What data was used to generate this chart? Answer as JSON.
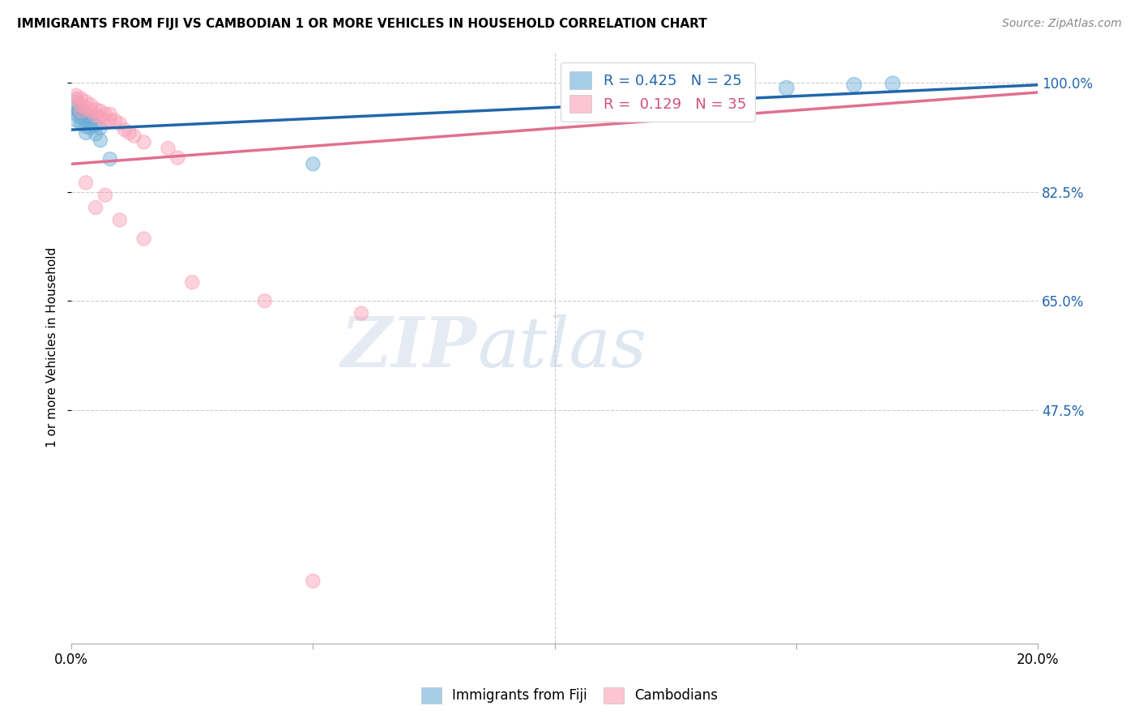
{
  "title": "IMMIGRANTS FROM FIJI VS CAMBODIAN 1 OR MORE VEHICLES IN HOUSEHOLD CORRELATION CHART",
  "source": "Source: ZipAtlas.com",
  "ylabel": "1 or more Vehicles in Household",
  "ytick_labels": [
    "100.0%",
    "82.5%",
    "65.0%",
    "47.5%"
  ],
  "ytick_values": [
    1.0,
    0.825,
    0.65,
    0.475
  ],
  "xlim": [
    0.0,
    0.2
  ],
  "ylim": [
    0.1,
    1.05
  ],
  "legend_blue_r": "0.425",
  "legend_blue_n": "25",
  "legend_pink_r": "0.129",
  "legend_pink_n": "35",
  "legend_label_blue": "Immigrants from Fiji",
  "legend_label_pink": "Cambodians",
  "watermark_zip": "ZIP",
  "watermark_atlas": "atlas",
  "blue_color": "#6baed6",
  "pink_color": "#fa9fb5",
  "blue_line_color": "#2166ac",
  "pink_line_color": "#e07090",
  "fiji_x": [
    0.0005,
    0.001,
    0.001,
    0.001,
    0.0015,
    0.002,
    0.002,
    0.002,
    0.003,
    0.003,
    0.003,
    0.003,
    0.004,
    0.004,
    0.004,
    0.005,
    0.005,
    0.006,
    0.006,
    0.008,
    0.05,
    0.135,
    0.148,
    0.162,
    0.17
  ],
  "fiji_y": [
    0.965,
    0.96,
    0.95,
    0.94,
    0.955,
    0.955,
    0.945,
    0.935,
    0.95,
    0.94,
    0.93,
    0.92,
    0.948,
    0.938,
    0.928,
    0.932,
    0.918,
    0.928,
    0.908,
    0.878,
    0.87,
    0.988,
    0.992,
    0.997,
    0.999
  ],
  "fiji_sizes": [
    120,
    60,
    60,
    60,
    60,
    60,
    60,
    60,
    60,
    60,
    60,
    60,
    60,
    60,
    60,
    60,
    60,
    60,
    60,
    60,
    60,
    90,
    70,
    70,
    70
  ],
  "cambodian_x": [
    0.001,
    0.001,
    0.002,
    0.002,
    0.002,
    0.003,
    0.003,
    0.004,
    0.004,
    0.005,
    0.005,
    0.006,
    0.006,
    0.007,
    0.007,
    0.008,
    0.008,
    0.009,
    0.01,
    0.011,
    0.012,
    0.013,
    0.015,
    0.02,
    0.022,
    0.003,
    0.005,
    0.007,
    0.01,
    0.015,
    0.04,
    0.06,
    0.025,
    0.13,
    0.05
  ],
  "cambodian_y": [
    0.98,
    0.975,
    0.975,
    0.965,
    0.955,
    0.97,
    0.96,
    0.965,
    0.955,
    0.958,
    0.948,
    0.955,
    0.945,
    0.95,
    0.94,
    0.95,
    0.94,
    0.94,
    0.935,
    0.925,
    0.92,
    0.915,
    0.905,
    0.895,
    0.88,
    0.84,
    0.8,
    0.82,
    0.78,
    0.75,
    0.65,
    0.63,
    0.68,
    0.985,
    0.2
  ],
  "cambodian_sizes": [
    60,
    60,
    60,
    60,
    60,
    60,
    60,
    60,
    60,
    60,
    60,
    60,
    60,
    60,
    60,
    60,
    60,
    60,
    60,
    60,
    60,
    60,
    60,
    60,
    60,
    60,
    60,
    60,
    60,
    60,
    60,
    60,
    60,
    70,
    60
  ]
}
